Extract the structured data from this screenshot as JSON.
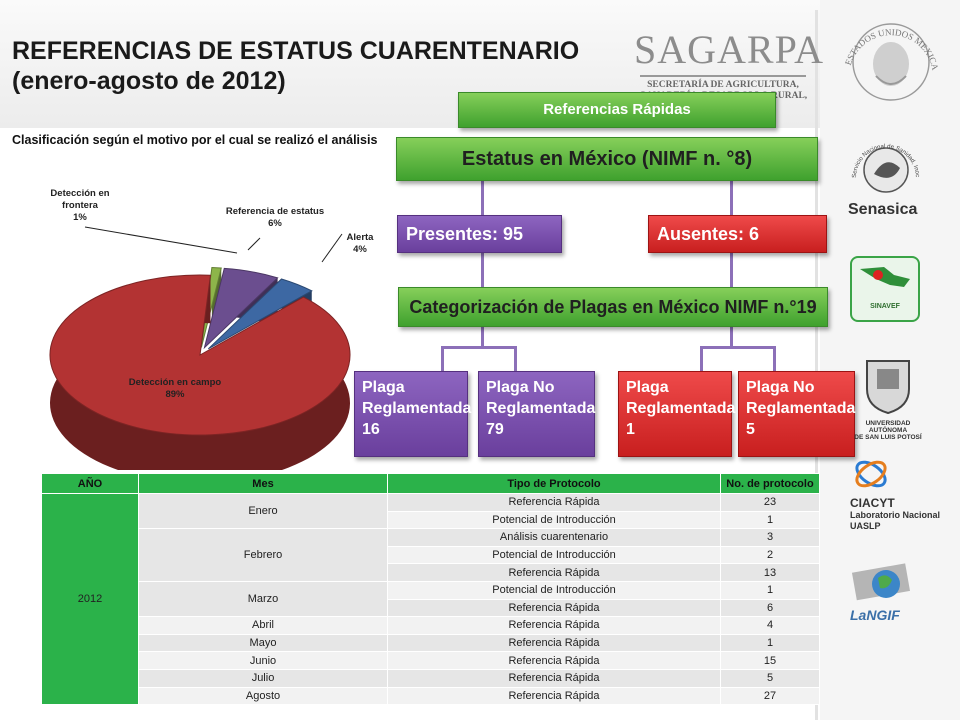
{
  "header": {
    "title_line1": "REFERENCIAS DE ESTATUS CUARENTENARIO",
    "title_line2": "(enero-agosto de 2012)",
    "sagarpa": "SAGARPA",
    "sagarpa_sub1": "SECRETARÍA DE AGRICULTURA,",
    "sagarpa_sub2": "GANADERÍA, DESARROLLO RURAL,",
    "seal_text": "ESTADOS UNIDOS MEXICANOS"
  },
  "button": {
    "label": "Referencias Rápidas"
  },
  "pie": {
    "heading": "Clasificación según el motivo por el cual se realizó el análisis",
    "labels": {
      "frontera": [
        "Detección en",
        "frontera",
        "1%"
      ],
      "estatus": [
        "Referencia de estatus",
        "6%"
      ],
      "alerta": [
        "Alerta",
        "4%"
      ],
      "campo": [
        "Detección en campo",
        "89%"
      ]
    }
  },
  "chart_data": {
    "type": "pie",
    "title": "Clasificación según el motivo por el cual se realizó el análisis",
    "categories": [
      "Detección en campo",
      "Detección en frontera",
      "Referencia de estatus",
      "Alerta"
    ],
    "values": [
      89,
      1,
      6,
      4
    ],
    "colors": [
      "#b33333",
      "#8db54a",
      "#6b4e8f",
      "#3d68a3"
    ]
  },
  "diagram": {
    "estatus": "Estatus en México  (NIMF n. °8)",
    "presentes": "Presentes: 95",
    "ausentes": "Ausentes: 6",
    "categorizacion": "Categorización de Plagas en México NIMF n.°19",
    "p_reg": [
      "Plaga",
      "Reglamentada",
      "16"
    ],
    "p_noreg": [
      "Plaga No",
      "Reglamentada",
      "79"
    ],
    "a_reg": [
      "Plaga",
      "Reglamentada",
      "1"
    ],
    "a_noreg": [
      "Plaga No",
      "Reglamentada",
      "5"
    ]
  },
  "logos": {
    "senasica": "Senasica",
    "senasica_ring": "Servicio Nacional de Sanidad, Inocuidad y Calidad Agroalimentaria",
    "sinavef": "SINAVEF",
    "uaslp1": "UNIVERSIDAD AUTÓNOMA",
    "uaslp2": "DE SAN LUIS POTOSÍ",
    "ciacyt1": "CIACYT",
    "ciacyt2": "Laboratorio Nacional",
    "ciacyt3": "UASLP",
    "langif": "LaNGIF"
  },
  "table": {
    "headers": [
      "AÑO",
      "Mes",
      "Tipo de Protocolo",
      "No. de protocolo"
    ],
    "year": "2012",
    "rows": [
      [
        "Enero",
        "Referencia Rápida",
        "23"
      ],
      [
        "",
        "Potencial de Introducción",
        "1"
      ],
      [
        "Febrero",
        "Análisis cuarentenario",
        "3"
      ],
      [
        "",
        "Potencial de Introducción",
        "2"
      ],
      [
        "",
        "Referencia Rápida",
        "13"
      ],
      [
        "Marzo",
        "Potencial de Introducción",
        "1"
      ],
      [
        "",
        "Referencia Rápida",
        "6"
      ],
      [
        "Abril",
        "Referencia Rápida",
        "4"
      ],
      [
        "Mayo",
        "Referencia Rápida",
        "1"
      ],
      [
        "Junio",
        "Referencia Rápida",
        "15"
      ],
      [
        "Julio",
        "Referencia Rápida",
        "5"
      ],
      [
        "Agosto",
        "Referencia Rápida",
        "27"
      ]
    ]
  }
}
